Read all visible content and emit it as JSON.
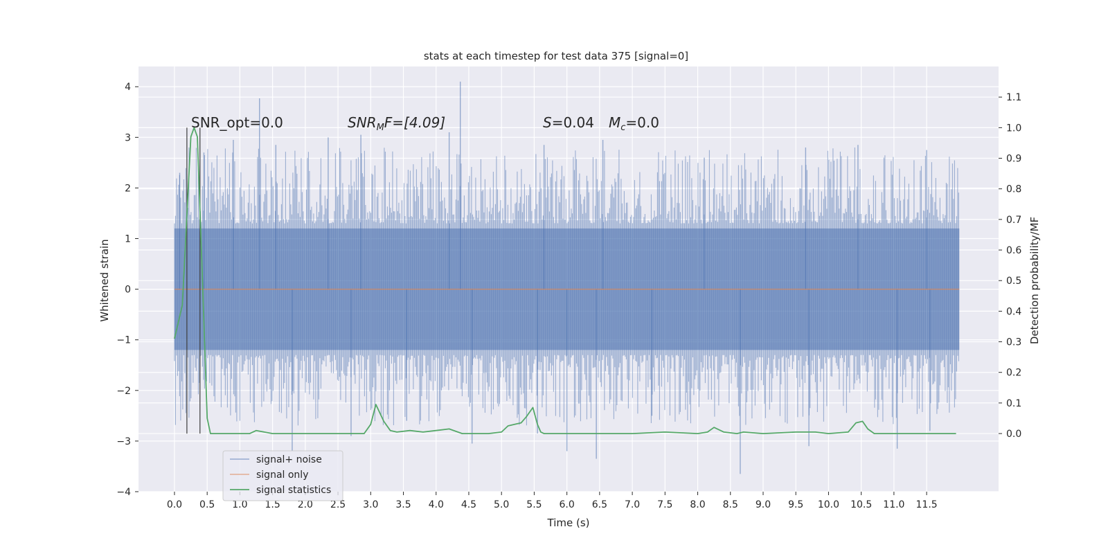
{
  "chart_data": {
    "type": "line",
    "title": "stats at each timestep for test data 375 [signal=0]",
    "xlabel": "Time (s)",
    "ylabel": "Whitened strain",
    "y2label": "Detection probability/MF",
    "xlim": [
      -0.55,
      12.6
    ],
    "ylim": [
      -4.0,
      4.4
    ],
    "y2lim": [
      -0.19,
      1.2
    ],
    "grid": true,
    "xticks": [
      "0.0",
      "0.5",
      "1.0",
      "1.5",
      "2.0",
      "2.5",
      "3.0",
      "3.5",
      "4.0",
      "4.5",
      "5.0",
      "5.5",
      "6.0",
      "6.5",
      "7.0",
      "7.5",
      "8.0",
      "8.5",
      "9.0",
      "9.5",
      "10.0",
      "10.5",
      "11.0",
      "11.5"
    ],
    "yticks": [
      "−4",
      "−3",
      "−2",
      "−1",
      "0",
      "1",
      "2",
      "3",
      "4"
    ],
    "y2ticks": [
      "0.0",
      "0.1",
      "0.2",
      "0.3",
      "0.4",
      "0.5",
      "0.6",
      "0.7",
      "0.8",
      "0.9",
      "1.0",
      "1.1"
    ],
    "annotations": {
      "snr_opt": "SNR_opt=0.0",
      "snr_mf_base": "SNR",
      "snr_mf_sub": "M",
      "snr_mf_rest": "F=[4.09]",
      "s_label": "S",
      "s_value": "=0.04",
      "mc_base": "M",
      "mc_sub": "c",
      "mc_value": "=0.0"
    },
    "legend": {
      "location": "lower-left",
      "entries": [
        "signal+ noise",
        "signal only",
        "signal statistics"
      ]
    },
    "series": [
      {
        "name": "signal+ noise",
        "axis": "left",
        "color": "#4c72b0",
        "kind": "noise-band",
        "x_range": [
          0.0,
          12.0
        ],
        "band": [
          -1.2,
          1.2
        ],
        "spikes": [
          {
            "x": 1.3,
            "y": 3.77
          },
          {
            "x": 4.37,
            "y": 4.1
          },
          {
            "x": 0.08,
            "y": 2.3
          },
          {
            "x": 0.45,
            "y": 2.7
          },
          {
            "x": 0.9,
            "y": 2.95
          },
          {
            "x": 1.55,
            "y": 2.85
          },
          {
            "x": 2.35,
            "y": 3.0
          },
          {
            "x": 2.85,
            "y": 3.05
          },
          {
            "x": 4.2,
            "y": 3.1
          },
          {
            "x": 5.65,
            "y": 2.85
          },
          {
            "x": 6.55,
            "y": 2.95
          },
          {
            "x": 8.1,
            "y": 2.6
          },
          {
            "x": 9.65,
            "y": 2.8
          },
          {
            "x": 10.45,
            "y": 2.85
          },
          {
            "x": 11.5,
            "y": 2.75
          },
          {
            "x": 1.8,
            "y": -3.2
          },
          {
            "x": 2.7,
            "y": -2.9
          },
          {
            "x": 4.55,
            "y": -3.05
          },
          {
            "x": 5.55,
            "y": -2.85
          },
          {
            "x": 6.0,
            "y": -3.2
          },
          {
            "x": 6.45,
            "y": -3.35
          },
          {
            "x": 8.65,
            "y": -3.65
          },
          {
            "x": 9.7,
            "y": -3.1
          },
          {
            "x": 11.05,
            "y": -3.15
          },
          {
            "x": 11.55,
            "y": -2.8
          },
          {
            "x": 3.55,
            "y": -2.6
          },
          {
            "x": 7.3,
            "y": -2.5
          }
        ]
      },
      {
        "name": "signal only",
        "axis": "left",
        "color": "#dd8452",
        "x": [
          0.0,
          12.0
        ],
        "values": [
          0.0,
          0.0
        ]
      },
      {
        "name": "signal statistics",
        "axis": "right",
        "color": "#55a868",
        "x": [
          0.0,
          0.12,
          0.25,
          0.3,
          0.35,
          0.42,
          0.5,
          0.55,
          0.6,
          1.0,
          1.15,
          1.25,
          1.5,
          2.0,
          2.5,
          2.9,
          3.0,
          3.08,
          3.2,
          3.3,
          3.4,
          3.6,
          3.8,
          4.0,
          4.2,
          4.4,
          4.6,
          4.8,
          5.0,
          5.1,
          5.2,
          5.3,
          5.38,
          5.48,
          5.55,
          5.6,
          5.65,
          6.0,
          6.5,
          7.0,
          7.5,
          8.0,
          8.15,
          8.25,
          8.4,
          8.6,
          8.7,
          9.0,
          9.5,
          9.8,
          10.0,
          10.3,
          10.42,
          10.52,
          10.6,
          10.7,
          10.9,
          11.0,
          11.5,
          11.95
        ],
        "values": [
          0.31,
          0.42,
          0.97,
          1.0,
          0.97,
          0.55,
          0.05,
          0.0,
          0.0,
          0.0,
          0.0,
          0.01,
          0.0,
          0.0,
          0.0,
          0.0,
          0.03,
          0.095,
          0.04,
          0.01,
          0.005,
          0.01,
          0.005,
          0.01,
          0.015,
          0.0,
          0.0,
          0.0,
          0.005,
          0.025,
          0.03,
          0.035,
          0.055,
          0.085,
          0.03,
          0.005,
          0.0,
          0.0,
          0.0,
          0.0,
          0.005,
          0.0,
          0.005,
          0.02,
          0.005,
          0.0,
          0.005,
          0.0,
          0.005,
          0.005,
          0.0,
          0.005,
          0.035,
          0.04,
          0.015,
          0.0,
          0.0,
          0.0,
          0.0,
          0.0
        ]
      }
    ],
    "vlines_x": [
      0.19,
      0.39
    ]
  }
}
